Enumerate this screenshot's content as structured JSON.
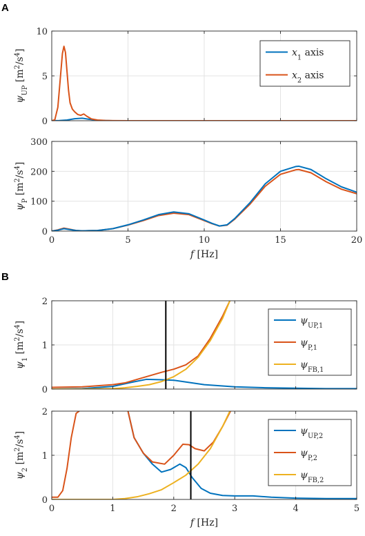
{
  "panels": [
    {
      "letter": "A"
    },
    {
      "letter": "B"
    }
  ],
  "colors": {
    "blue": "#0072bd",
    "red": "#d95319",
    "yellow": "#edb120",
    "marker": "#000000"
  },
  "chart_data": [
    {
      "id": "A1",
      "type": "line",
      "ylabel": "ψ_UP [m^2/s^4]",
      "xlabel": "",
      "xlim": [
        0,
        20
      ],
      "ylim": [
        0,
        10
      ],
      "xticks": [
        0,
        5,
        10,
        15,
        20
      ],
      "yticks": [
        0,
        5,
        10
      ],
      "show_x_ticklabels": false,
      "grid": true,
      "legend": "top-right",
      "series": [
        {
          "name": "x1 axis",
          "color": "blue",
          "x": [
            0,
            0.5,
            1,
            1.5,
            2,
            2.5,
            3,
            3.5,
            4,
            5,
            10,
            20
          ],
          "y": [
            0,
            0.02,
            0.08,
            0.22,
            0.28,
            0.15,
            0.05,
            0.02,
            0,
            0,
            0,
            0
          ]
        },
        {
          "name": "x2 axis",
          "color": "red",
          "x": [
            0,
            0.2,
            0.4,
            0.55,
            0.7,
            0.8,
            0.9,
            1.0,
            1.1,
            1.2,
            1.35,
            1.5,
            1.7,
            1.9,
            2.1,
            2.3,
            2.6,
            3,
            3.5,
            4,
            5,
            10,
            20
          ],
          "y": [
            0,
            0.1,
            1.5,
            4.5,
            7.5,
            8.3,
            7.6,
            5.5,
            3.4,
            2.0,
            1.3,
            1.0,
            0.7,
            0.6,
            0.75,
            0.5,
            0.2,
            0.08,
            0.03,
            0.01,
            0,
            0,
            0
          ]
        }
      ]
    },
    {
      "id": "A2",
      "type": "line",
      "ylabel": "ψ_P [m^2/s^4]",
      "xlabel": "f [Hz]",
      "xlim": [
        0,
        20
      ],
      "ylim": [
        0,
        300
      ],
      "xticks": [
        0,
        5,
        10,
        15,
        20
      ],
      "yticks": [
        0,
        100,
        200,
        300
      ],
      "show_x_ticklabels": true,
      "grid": true,
      "legend": "none",
      "series": [
        {
          "name": "",
          "color": "red",
          "x": [
            0,
            0.4,
            0.8,
            1.2,
            1.6,
            2,
            3,
            4,
            5,
            6,
            7,
            8,
            9,
            10,
            10.5,
            11,
            11.5,
            12,
            13,
            14,
            15,
            16,
            16.2,
            17,
            18,
            19,
            20
          ],
          "y": [
            0,
            4,
            10,
            6,
            2,
            1,
            2,
            8,
            20,
            35,
            52,
            60,
            55,
            35,
            25,
            17,
            20,
            40,
            90,
            150,
            190,
            205,
            206,
            195,
            165,
            140,
            125
          ]
        },
        {
          "name": "",
          "color": "blue",
          "x": [
            0,
            0.4,
            0.8,
            1.2,
            1.6,
            2,
            3,
            4,
            5,
            6,
            7,
            8,
            9,
            10,
            10.5,
            11,
            11.5,
            12,
            13,
            14,
            15,
            16,
            16.2,
            17,
            18,
            19,
            20
          ],
          "y": [
            0,
            3,
            8,
            5,
            2,
            1,
            2,
            8,
            21,
            37,
            55,
            64,
            58,
            37,
            26,
            17,
            21,
            42,
            95,
            158,
            200,
            216,
            217,
            206,
            175,
            148,
            130
          ]
        }
      ]
    },
    {
      "id": "B1",
      "type": "line",
      "ylabel": "ψ_1 [m^2/s^4]",
      "xlabel": "",
      "xlim": [
        0,
        5
      ],
      "ylim": [
        0,
        2
      ],
      "xticks": [
        0,
        1,
        2,
        3,
        4,
        5
      ],
      "yticks": [
        0,
        1,
        2
      ],
      "show_x_ticklabels": false,
      "grid": true,
      "legend": "top-right",
      "vline": 1.87,
      "series": [
        {
          "name": "ψ_UP,1",
          "color": "blue",
          "x": [
            0,
            0.5,
            1.0,
            1.3,
            1.55,
            1.8,
            2.0,
            2.2,
            2.5,
            3.0,
            3.5,
            4.0,
            4.5,
            5.0
          ],
          "y": [
            0,
            0.01,
            0.06,
            0.15,
            0.22,
            0.21,
            0.2,
            0.16,
            0.1,
            0.05,
            0.03,
            0.02,
            0.01,
            0.01
          ]
        },
        {
          "name": "ψ_P,1",
          "color": "red",
          "x": [
            0,
            0.5,
            0.8,
            1.0,
            1.2,
            1.4,
            1.6,
            1.8,
            2.0,
            2.2,
            2.4,
            2.6,
            2.8,
            2.92
          ],
          "y": [
            0.04,
            0.05,
            0.08,
            0.1,
            0.14,
            0.22,
            0.3,
            0.38,
            0.45,
            0.55,
            0.75,
            1.15,
            1.65,
            2.0
          ]
        },
        {
          "name": "ψ_FB,1",
          "color": "yellow",
          "x": [
            0,
            0.5,
            1.0,
            1.2,
            1.4,
            1.6,
            1.8,
            2.0,
            2.2,
            2.4,
            2.6,
            2.8,
            2.92
          ],
          "y": [
            0,
            0,
            0.01,
            0.03,
            0.06,
            0.1,
            0.17,
            0.28,
            0.45,
            0.72,
            1.1,
            1.6,
            2.0
          ]
        }
      ]
    },
    {
      "id": "B2",
      "type": "line",
      "ylabel": "ψ_2 [m^2/s^4]",
      "xlabel": "f [Hz]",
      "xlim": [
        0,
        5
      ],
      "ylim": [
        0,
        2
      ],
      "xticks": [
        0,
        1,
        2,
        3,
        4,
        5
      ],
      "yticks": [
        0,
        1,
        2
      ],
      "show_x_ticklabels": true,
      "grid": true,
      "legend": "top-right",
      "vline": 2.28,
      "series": [
        {
          "name": "ψ_UP,2",
          "color": "blue",
          "x": [
            1.25,
            1.35,
            1.5,
            1.65,
            1.8,
            1.95,
            2.1,
            2.2,
            2.3,
            2.45,
            2.6,
            2.8,
            3.0,
            3.3,
            3.6,
            4.0,
            4.5,
            5.0
          ],
          "y": [
            2.0,
            1.4,
            1.05,
            0.8,
            0.62,
            0.68,
            0.8,
            0.72,
            0.5,
            0.25,
            0.14,
            0.09,
            0.08,
            0.08,
            0.05,
            0.03,
            0.02,
            0.02
          ]
        },
        {
          "name": "ψ_P,2",
          "color": "red",
          "x": [
            0,
            0.1,
            0.18,
            0.25,
            0.32,
            0.4,
            0.45
          ],
          "y": [
            0.05,
            0.05,
            0.2,
            0.7,
            1.4,
            1.95,
            2.0
          ],
          "x2": [
            1.25,
            1.35,
            1.5,
            1.65,
            1.85,
            2.0,
            2.15,
            2.25,
            2.35,
            2.5,
            2.65,
            2.8,
            2.93
          ],
          "y2": [
            2.0,
            1.4,
            1.05,
            0.85,
            0.8,
            1.0,
            1.25,
            1.24,
            1.15,
            1.1,
            1.3,
            1.65,
            2.0
          ]
        },
        {
          "name": "ψ_FB,2",
          "color": "yellow",
          "x": [
            0,
            1.0,
            1.2,
            1.4,
            1.6,
            1.8,
            2.0,
            2.2,
            2.4,
            2.6,
            2.8,
            2.92
          ],
          "y": [
            0,
            0,
            0.02,
            0.06,
            0.13,
            0.22,
            0.38,
            0.55,
            0.8,
            1.15,
            1.65,
            2.0
          ]
        }
      ]
    }
  ]
}
